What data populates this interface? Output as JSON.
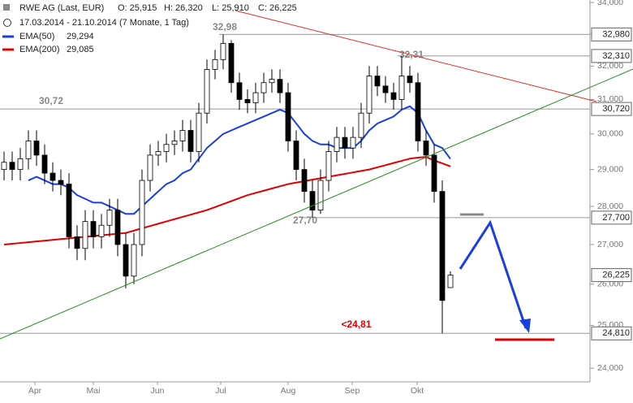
{
  "chart_data": {
    "type": "candlestick",
    "title": "RWE AG (Last, EUR)",
    "ohlc_labels": [
      "O: 25,915",
      "H: 26,320",
      "L: 25,910",
      "C: 26,225"
    ],
    "subtitle": "17.03.2014 - 21.10.2014 (7 Monate, 1 Tag)",
    "log_scale": true,
    "ylim": [
      23690,
      34080
    ],
    "yticks": [
      {
        "value": 24000,
        "label": "24,000"
      },
      {
        "value": 25000,
        "label": "25,000"
      },
      {
        "value": 26000,
        "label": "26,000"
      },
      {
        "value": 27000,
        "label": "27,000"
      },
      {
        "value": 28000,
        "label": "28,000"
      },
      {
        "value": 29000,
        "label": "29,000"
      },
      {
        "value": 30000,
        "label": "30,000"
      },
      {
        "value": 31000,
        "label": "31,000"
      },
      {
        "value": 32000,
        "label": "32,000"
      },
      {
        "value": 33000,
        "label": "33,000"
      },
      {
        "value": 34000,
        "label": "34,000"
      }
    ],
    "xticks": [
      {
        "value": 3.8,
        "label": "Apr"
      },
      {
        "value": 11,
        "label": "Mai"
      },
      {
        "value": 18.9,
        "label": "Jun"
      },
      {
        "value": 26.7,
        "label": "Jul"
      },
      {
        "value": 35,
        "label": "Aug"
      },
      {
        "value": 42.9,
        "label": "Sep"
      },
      {
        "value": 50.9,
        "label": "Okt"
      }
    ],
    "open": [
      29000,
      29200,
      29000,
      29300,
      29800,
      29400,
      28900,
      28700,
      28600,
      27200,
      26900,
      27600,
      27200,
      27500,
      27900,
      27000,
      26200,
      27000,
      28700,
      29400,
      29500,
      29700,
      29800,
      30100,
      29500,
      30600,
      31900,
      32200,
      32700,
      31500,
      31000,
      30900,
      31200,
      31500,
      31600,
      31200,
      29800,
      29000,
      28400,
      27900,
      28700,
      29500,
      29900,
      29600,
      29900,
      30600,
      31700,
      31400,
      31200,
      31000,
      31700,
      31500,
      29800,
      29400,
      28400,
      25915
    ],
    "high": [
      29500,
      29500,
      29600,
      30100,
      30100,
      29700,
      29200,
      29000,
      28900,
      27500,
      27900,
      27900,
      27800,
      28200,
      28200,
      27300,
      27300,
      29000,
      29700,
      29800,
      30000,
      30100,
      30400,
      30400,
      30900,
      32200,
      32500,
      32980,
      32800,
      31800,
      31300,
      31500,
      31800,
      31900,
      31900,
      31500,
      30100,
      29300,
      28700,
      29000,
      29800,
      30200,
      30200,
      30200,
      30900,
      32000,
      32000,
      31700,
      31500,
      32310,
      32000,
      31800,
      30100,
      29700,
      28700,
      26320
    ],
    "low": [
      28700,
      28700,
      28700,
      29000,
      29100,
      28600,
      28400,
      28300,
      26900,
      26600,
      26600,
      26900,
      26900,
      27200,
      26700,
      25900,
      26000,
      26700,
      28400,
      29100,
      29200,
      29400,
      29500,
      29200,
      29200,
      30300,
      31600,
      31900,
      31200,
      30700,
      30600,
      30600,
      30900,
      31200,
      30900,
      29500,
      28700,
      28100,
      27700,
      27800,
      28400,
      29200,
      29300,
      29300,
      29600,
      30300,
      31100,
      30900,
      30700,
      30700,
      31200,
      29500,
      29100,
      28100,
      24810,
      25910
    ],
    "close": [
      29200,
      29000,
      29300,
      29800,
      29400,
      28900,
      28700,
      28600,
      27200,
      26900,
      27600,
      27200,
      27500,
      27900,
      27000,
      26200,
      27000,
      28700,
      29400,
      29500,
      29700,
      29800,
      30100,
      29500,
      30600,
      31900,
      32200,
      32700,
      31500,
      31000,
      30900,
      31200,
      31500,
      31600,
      31200,
      29800,
      29000,
      28400,
      27900,
      28700,
      29500,
      29900,
      29600,
      29900,
      30600,
      31700,
      31400,
      31200,
      31000,
      31700,
      31500,
      29800,
      29400,
      28400,
      25600,
      26225
    ],
    "up_color": "#ffffff",
    "down_color": "#000000",
    "series": [
      {
        "name": "EMA(50)",
        "value_label": "29,294",
        "color": "#1a3ee0",
        "values": [
          null,
          null,
          null,
          28700,
          28800,
          28700,
          28600,
          28600,
          28500,
          28300,
          28200,
          28100,
          28100,
          28000,
          27900,
          27800,
          27800,
          28000,
          28200,
          28400,
          28600,
          28700,
          28900,
          29000,
          29300,
          29600,
          29800,
          30000,
          30100,
          30200,
          30300,
          30400,
          30500,
          30600,
          30700,
          30600,
          30300,
          30000,
          29800,
          29700,
          29700,
          29600,
          29600,
          29600,
          29800,
          30100,
          30300,
          30400,
          30500,
          30700,
          30800,
          30600,
          30100,
          29700,
          29600,
          29294
        ]
      },
      {
        "name": "EMA(200)",
        "value_label": "29,085",
        "color": "#e00000",
        "values": [
          27000,
          27020,
          27040,
          27060,
          27080,
          27100,
          27120,
          27140,
          27160,
          27180,
          27200,
          27220,
          27240,
          27260,
          27280,
          27300,
          27360,
          27420,
          27480,
          27540,
          27600,
          27660,
          27720,
          27780,
          27840,
          27900,
          27980,
          28060,
          28140,
          28220,
          28300,
          28360,
          28420,
          28480,
          28540,
          28600,
          28640,
          28680,
          28720,
          28760,
          28800,
          28840,
          28880,
          28920,
          28960,
          29000,
          29060,
          29120,
          29180,
          29240,
          29300,
          29330,
          29350,
          29250,
          29170,
          29085
        ]
      }
    ],
    "levels": [
      {
        "value": 32980,
        "label": "32,980",
        "note": "32,98"
      },
      {
        "value": 32310,
        "label": "32,310",
        "note": "32,31"
      },
      {
        "value": 30720,
        "label": "30,720",
        "note": "30,72"
      },
      {
        "value": 27700,
        "label": "27,700",
        "note": "27,70"
      },
      {
        "value": 26225,
        "label": "26,225"
      },
      {
        "value": 24810,
        "label": "24,810",
        "note": "<24,81"
      }
    ]
  }
}
